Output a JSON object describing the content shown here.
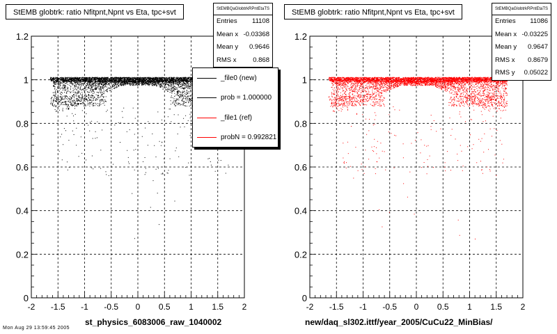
{
  "footer": {
    "text": "Mon Aug 29 13:59:45 2005"
  },
  "chart_data": [
    {
      "type": "scatter",
      "title": "StEMB globtrk: ratio Nfitpnt,Npnt vs Eta, tpc+svt",
      "xlabel": "st_physics_6083006_raw_1040002",
      "ylabel": "",
      "xlim": [
        -2,
        2
      ],
      "ylim": [
        0,
        1.2
      ],
      "xticks": [
        "-2",
        "-1.5",
        "-1",
        "-0.5",
        "0",
        "0.5",
        "1",
        "1.5",
        "2"
      ],
      "yticks": [
        "0",
        "0.2",
        "0.4",
        "0.6",
        "0.8",
        "1",
        "1.2"
      ],
      "grid": true,
      "marker_color": "#000000",
      "stats": {
        "title": "StEMBQaGlobtrkRPntEtaTS",
        "rows": [
          {
            "label": "Entries",
            "value": "11108"
          },
          {
            "label": "Mean x",
            "value": "-0.03368"
          },
          {
            "label": "Mean y",
            "value": "0.9646"
          },
          {
            "label": "RMS x",
            "value": "0.868"
          }
        ]
      },
      "legend": {
        "placement": "right",
        "entries": [
          {
            "label": "_file0 (new)",
            "color": "#000000"
          },
          {
            "label": "prob = 1.000000",
            "color": "#000000"
          },
          {
            "label": "_file1 (ref)",
            "color": "#ff0000"
          },
          {
            "label": "probN = 0.992821",
            "color": "#ff0000"
          }
        ]
      }
    },
    {
      "type": "scatter",
      "title": "StEMB globtrk: ratio Nfitpnt,Npnt vs Eta, tpc+svt",
      "xlabel": "new/daq_sl302.ittf/year_2005/CuCu22_MinBias/",
      "ylabel": "",
      "xlim": [
        -2,
        2
      ],
      "ylim": [
        0,
        1.2
      ],
      "xticks": [
        "-2",
        "-1.5",
        "-1",
        "-0.5",
        "0",
        "0.5",
        "1",
        "1.5",
        "2"
      ],
      "yticks": [
        "0",
        "0.2",
        "0.4",
        "0.6",
        "0.8",
        "1",
        "1.2"
      ],
      "grid": true,
      "marker_color": "#ff0000",
      "stats": {
        "title": "StEMBQaGlobtrkRPntEtaTS",
        "rows": [
          {
            "label": "Entries",
            "value": "11086"
          },
          {
            "label": "Mean x",
            "value": "-0.03225"
          },
          {
            "label": "Mean y",
            "value": "0.9647"
          },
          {
            "label": "RMS x",
            "value": "0.8679"
          },
          {
            "label": "RMS y",
            "value": "0.05022"
          }
        ]
      }
    }
  ]
}
